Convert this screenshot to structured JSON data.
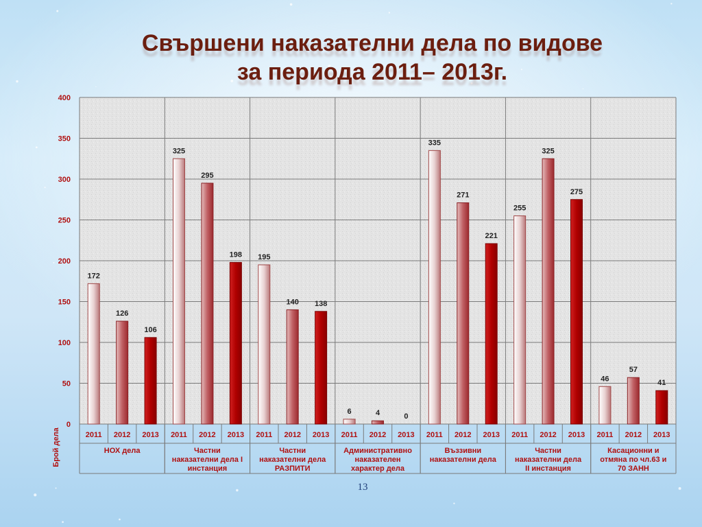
{
  "title": {
    "line1": "Свършени наказателни дела по видове",
    "line2": "за периода 2011– 2013г."
  },
  "page_number": "13",
  "colors": {
    "title": "#6b1e0f",
    "axis_text": "#b01010",
    "bar_light": "#f2e4e4",
    "bar_mid": "#b64c50",
    "bar_dark": "#b00000",
    "grid": "#7a7a7a"
  },
  "chart_data": {
    "type": "bar",
    "title": "",
    "ylabel": "Брой дела",
    "xlabel": "",
    "ylim": [
      0,
      400
    ],
    "yticks": [
      0,
      50,
      100,
      150,
      200,
      250,
      300,
      350,
      400
    ],
    "grid": true,
    "legend": "none",
    "years": [
      "2011",
      "2012",
      "2013"
    ],
    "groups": [
      {
        "label": [
          "НОХ дела"
        ],
        "values": [
          172,
          126,
          106
        ]
      },
      {
        "label": [
          "Частни",
          "наказателни дела I",
          "инстанция"
        ],
        "values": [
          325,
          295,
          198
        ]
      },
      {
        "label": [
          "Частни",
          "наказателни дела",
          "РАЗПИТИ"
        ],
        "values": [
          195,
          140,
          138
        ]
      },
      {
        "label": [
          "Административно",
          "наказателен",
          "характер дела"
        ],
        "values": [
          6,
          4,
          0
        ]
      },
      {
        "label": [
          "Въззивни",
          "наказателни дела"
        ],
        "values": [
          335,
          271,
          221
        ]
      },
      {
        "label": [
          "Частни",
          "наказателни дела",
          "II инстанция"
        ],
        "values": [
          255,
          325,
          275
        ]
      },
      {
        "label": [
          "Касационни и",
          "отмяна по чл.63 и",
          "70 ЗАНН"
        ],
        "values": [
          46,
          57,
          41
        ]
      }
    ]
  }
}
